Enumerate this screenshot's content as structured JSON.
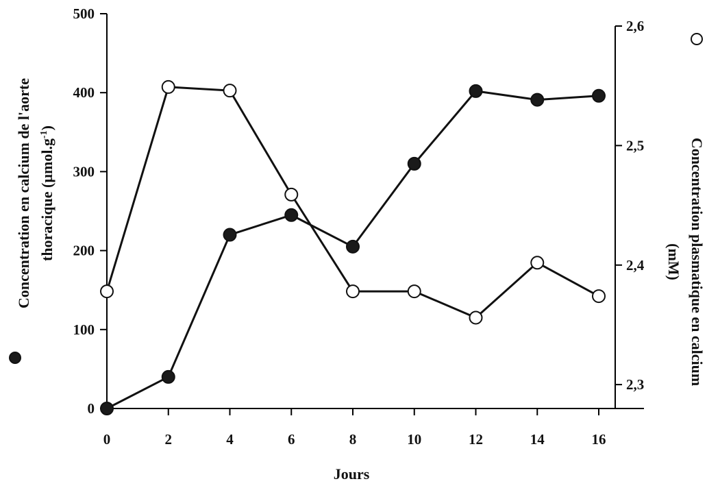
{
  "chart_data": {
    "type": "line",
    "title": "",
    "xlabel": "Jours",
    "ylabel_left_line1": "Concentration en calcium de l'aorte",
    "ylabel_left_line2_prefix": "thoracique (µmol.g",
    "ylabel_left_line2_sup": "-1",
    "ylabel_left_line2_suffix": ")",
    "ylabel_right_line1": "Concentration plasmatique en calcium",
    "ylabel_right_line2": "(mM)",
    "x": [
      0,
      2,
      4,
      6,
      8,
      10,
      12,
      14,
      16
    ],
    "x_ticks": [
      "0",
      "2",
      "4",
      "6",
      "8",
      "10",
      "12",
      "14",
      "16"
    ],
    "xlim": [
      0,
      16
    ],
    "y_left_ticks": [
      "0",
      "100",
      "200",
      "300",
      "400",
      "500"
    ],
    "ylim_left": [
      0,
      500
    ],
    "y_right_ticks": [
      "2,3",
      "2,4",
      "2,5",
      "2,6"
    ],
    "ylim_right": [
      2.28,
      2.6
    ],
    "series": [
      {
        "marker": "filled-circle",
        "axis": "left",
        "values": [
          0,
          40,
          220,
          245,
          205,
          310,
          402,
          391,
          396
        ]
      },
      {
        "marker": "open-circle",
        "axis": "right",
        "values": [
          2.378,
          2.549,
          2.546,
          2.459,
          2.378,
          2.378,
          2.356,
          2.402,
          2.374
        ]
      }
    ],
    "legend_marker_left": "filled-circle",
    "legend_marker_right": "open-circle",
    "grid": false,
    "colors": {
      "filled": "#1a1a1a",
      "open_fill": "#ffffff",
      "stroke": "#111111"
    }
  }
}
